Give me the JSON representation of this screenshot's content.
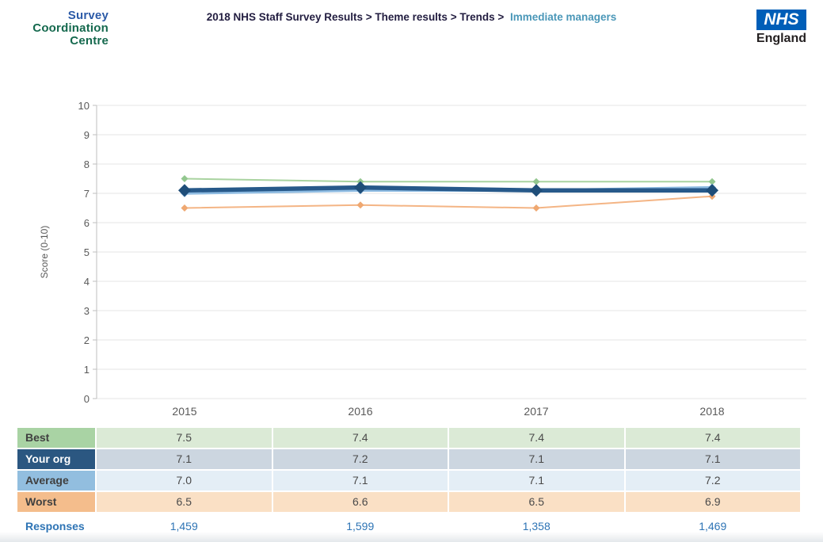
{
  "header": {
    "logo": {
      "line1": "Survey",
      "line2": "Coordination",
      "line3": "Centre"
    },
    "breadcrumb": {
      "bold_part": "2018 NHS Staff Survey Results > Theme results > Trends >",
      "current": "Immediate managers"
    },
    "nhs": {
      "box": "NHS",
      "england": "England"
    }
  },
  "chart_data": {
    "type": "line",
    "title": "",
    "xlabel": "",
    "ylabel": "Score (0-10)",
    "ylim": [
      0,
      10
    ],
    "yticks": [
      0,
      1,
      2,
      3,
      4,
      5,
      6,
      7,
      8,
      9,
      10
    ],
    "categories": [
      "2015",
      "2016",
      "2017",
      "2018"
    ],
    "grid": true,
    "legend_position": "table-below",
    "series": [
      {
        "name": "Best",
        "values": [
          7.5,
          7.4,
          7.4,
          7.4
        ],
        "color": "#a9d3a0",
        "marker_color": "#93c78f",
        "width": 2,
        "marker": "diamond",
        "marker_size": 4.5
      },
      {
        "name": "Average",
        "values": [
          7.0,
          7.1,
          7.1,
          7.2
        ],
        "color": "#8fbce2",
        "marker_color": "#7fb0da",
        "width": 3.5,
        "marker": "diamond",
        "marker_size": 5
      },
      {
        "name": "Worst",
        "values": [
          6.5,
          6.6,
          6.5,
          6.9
        ],
        "color": "#f4b585",
        "marker_color": "#efa871",
        "width": 2,
        "marker": "diamond",
        "marker_size": 4.5
      },
      {
        "name": "Your org",
        "values": [
          7.1,
          7.2,
          7.1,
          7.1
        ],
        "color": "#27598a",
        "marker_color": "#1f4e79",
        "width": 5.5,
        "marker": "diamond",
        "marker_size": 8
      }
    ],
    "axis_color": "#bfbfbf",
    "grid_color": "#e4e4e4",
    "tick_color": "#595959"
  },
  "table": {
    "rows": [
      {
        "label": "Best",
        "values": [
          "7.5",
          "7.4",
          "7.4",
          "7.4"
        ],
        "label_bg": "#a9d3a4",
        "cell_bg": "#dbead6",
        "label_color": "#404040"
      },
      {
        "label": "Your org",
        "values": [
          "7.1",
          "7.2",
          "7.1",
          "7.1"
        ],
        "label_bg": "#2b5781",
        "cell_bg": "#ccd6e0",
        "label_color": "#ffffff"
      },
      {
        "label": "Average",
        "values": [
          "7.0",
          "7.1",
          "7.1",
          "7.2"
        ],
        "label_bg": "#92bedf",
        "cell_bg": "#e4eef6",
        "label_color": "#404040"
      },
      {
        "label": "Worst",
        "values": [
          "6.5",
          "6.6",
          "6.5",
          "6.9"
        ],
        "label_bg": "#f4bd8c",
        "cell_bg": "#fae0c5",
        "label_color": "#404040"
      }
    ],
    "responses": {
      "label": "Responses",
      "values": [
        "1,459",
        "1,599",
        "1,358",
        "1,469"
      ],
      "color": "#2e74b5"
    }
  }
}
